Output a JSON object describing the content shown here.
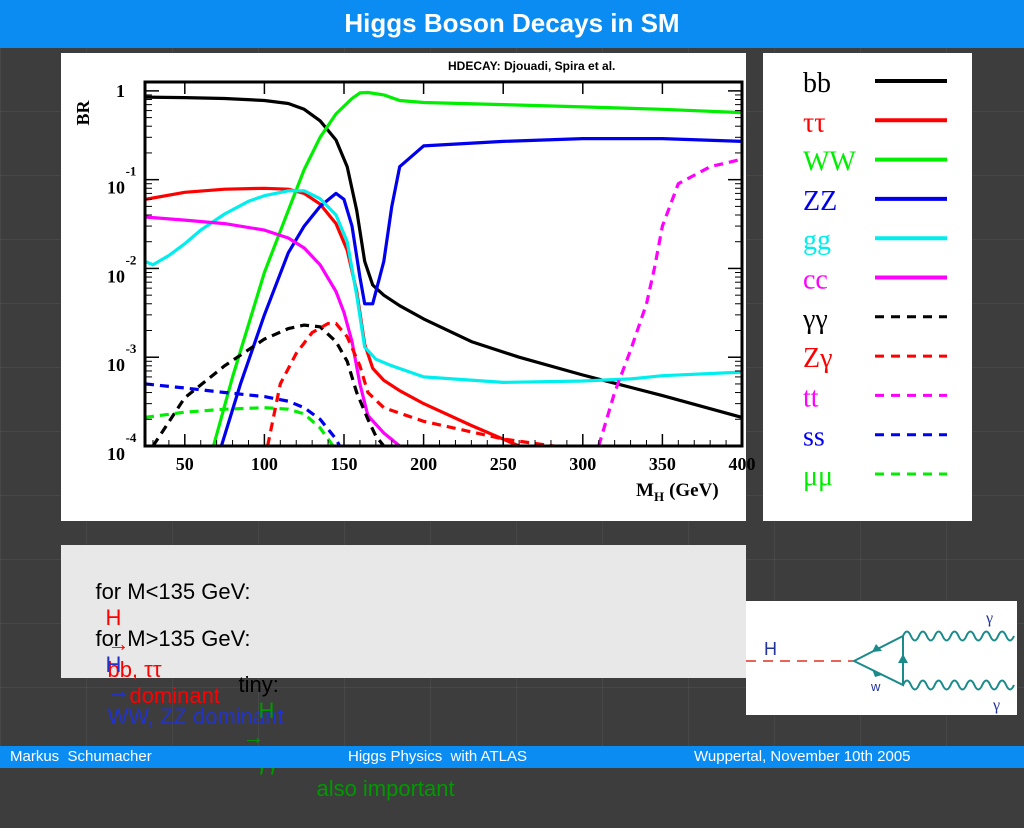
{
  "slide": {
    "title": "Higgs Boson Decays in SM",
    "footer_left": "Markus  Schumacher",
    "footer_center": "Higgs Physics  with ATLAS",
    "footer_right": "Wuppertal, November 10th 2005"
  },
  "text_box": {
    "line1_prefix": "for M<135 GeV:",
    "line1_h": "H",
    "line1_arrow": "→",
    "line1_products": "bb, ττ",
    "line1_suffix": "dominant",
    "line2_prefix": "for M>135 GeV:",
    "line2_h": "H",
    "line2_arrow": "→",
    "line2_products": "WW, ZZ dominant",
    "line3_prefix": "tiny:",
    "line3_h": "H",
    "line3_arrow": "→",
    "line3_products": "γγ",
    "line3_suffix": "also important"
  },
  "feynman": {
    "h_label": "H",
    "w_label": "w",
    "gamma_top": "γ",
    "gamma_bottom": "γ"
  },
  "chart_data": {
    "type": "line",
    "source_note": "HDECAY:  Djouadi, Spira et al.",
    "xlabel": "M",
    "xlabel_sub": "H",
    "xlabel_unit": "(GeV)",
    "ylabel": "BR",
    "xlim": [
      25,
      400
    ],
    "ylim_log10": [
      -4,
      0.1
    ],
    "y_scale": "log",
    "x_ticks": [
      50,
      100,
      150,
      200,
      250,
      300,
      350,
      400
    ],
    "y_ticks": [
      {
        "base": "1",
        "exp": ""
      },
      {
        "base": "10",
        "exp": "-1"
      },
      {
        "base": "10",
        "exp": "-2"
      },
      {
        "base": "10",
        "exp": "-3"
      },
      {
        "base": "10",
        "exp": "-4"
      }
    ],
    "y_tick_values": [
      0,
      -1,
      -2,
      -3,
      -4
    ],
    "legend_position": "right (separate panel)",
    "series": [
      {
        "name": "bb",
        "color": "#000000",
        "dash": false,
        "x": [
          25,
          50,
          75,
          100,
          115,
          125,
          135,
          145,
          152,
          158,
          163,
          168,
          175,
          185,
          200,
          230,
          260,
          300,
          350,
          400
        ],
        "y": [
          0.85,
          0.84,
          0.82,
          0.78,
          0.72,
          0.62,
          0.46,
          0.28,
          0.14,
          0.045,
          0.012,
          0.0065,
          0.005,
          0.0038,
          0.0027,
          0.0015,
          0.001,
          0.00063,
          0.00037,
          0.00021
        ]
      },
      {
        "name": "ττ",
        "color": "#ff0000",
        "dash": false,
        "x": [
          25,
          50,
          75,
          100,
          115,
          125,
          135,
          145,
          152,
          158,
          163,
          168,
          175,
          185,
          200,
          230,
          260
        ],
        "y": [
          0.06,
          0.072,
          0.078,
          0.08,
          0.078,
          0.07,
          0.053,
          0.032,
          0.016,
          0.0055,
          0.0014,
          0.00075,
          0.00055,
          0.00042,
          0.0003,
          0.00017,
          0.0001
        ]
      },
      {
        "name": "WW",
        "color": "#00ee00",
        "dash": false,
        "x": [
          68,
          80,
          100,
          115,
          125,
          135,
          145,
          155,
          160,
          165,
          175,
          185,
          200,
          250,
          300,
          350,
          400
        ],
        "y": [
          0.0001,
          0.0006,
          0.009,
          0.045,
          0.13,
          0.3,
          0.55,
          0.82,
          0.95,
          0.96,
          0.9,
          0.78,
          0.74,
          0.7,
          0.66,
          0.62,
          0.57
        ]
      },
      {
        "name": "ZZ",
        "color": "#0000ee",
        "dash": false,
        "x": [
          73,
          85,
          100,
          115,
          125,
          135,
          145,
          150,
          155,
          160,
          163,
          168,
          175,
          180,
          185,
          200,
          250,
          300,
          350,
          400
        ],
        "y": [
          0.0001,
          0.0005,
          0.003,
          0.015,
          0.03,
          0.05,
          0.07,
          0.06,
          0.03,
          0.008,
          0.004,
          0.004,
          0.012,
          0.05,
          0.14,
          0.24,
          0.27,
          0.29,
          0.29,
          0.27
        ]
      },
      {
        "name": "gg",
        "color": "#00eeee",
        "dash": false,
        "x": [
          25,
          30,
          40,
          50,
          60,
          75,
          90,
          100,
          115,
          125,
          135,
          145,
          152,
          158,
          163,
          170,
          180,
          200,
          250,
          300,
          330,
          350,
          400
        ],
        "y": [
          0.012,
          0.011,
          0.014,
          0.019,
          0.027,
          0.041,
          0.057,
          0.066,
          0.075,
          0.075,
          0.061,
          0.04,
          0.02,
          0.005,
          0.0013,
          0.00095,
          0.0008,
          0.0006,
          0.00052,
          0.00054,
          0.00057,
          0.00062,
          0.00068
        ]
      },
      {
        "name": "cc",
        "color": "#ff00ff",
        "dash": false,
        "x": [
          25,
          50,
          75,
          100,
          115,
          125,
          135,
          145,
          150,
          155,
          160,
          165,
          175,
          185
        ],
        "y": [
          0.038,
          0.035,
          0.032,
          0.027,
          0.022,
          0.017,
          0.011,
          0.0055,
          0.0032,
          0.0015,
          0.0005,
          0.00022,
          0.00014,
          0.0001
        ]
      },
      {
        "name": "γγ",
        "color": "#000000",
        "dash": true,
        "x": [
          30,
          50,
          75,
          100,
          115,
          125,
          135,
          145,
          152,
          158,
          165,
          170,
          175
        ],
        "y": [
          0.0001,
          0.00035,
          0.0008,
          0.0016,
          0.0021,
          0.0023,
          0.0022,
          0.0015,
          0.0009,
          0.0004,
          0.0002,
          0.00013,
          0.0001
        ]
      },
      {
        "name": "Zγ",
        "color": "#ff0000",
        "dash": true,
        "x": [
          102,
          110,
          120,
          130,
          140,
          145,
          152,
          160,
          165,
          175,
          200,
          250,
          300,
          340
        ],
        "y": [
          0.0001,
          0.0005,
          0.0011,
          0.0019,
          0.0024,
          0.0024,
          0.0017,
          0.0008,
          0.0004,
          0.00027,
          0.00019,
          0.00012,
          9e-05,
          7e-05
        ]
      },
      {
        "name": "tt",
        "color": "#ff00ff",
        "dash": true,
        "x": [
          310,
          320,
          330,
          340,
          345,
          350,
          360,
          380,
          400
        ],
        "y": [
          0.0001,
          0.0004,
          0.0012,
          0.004,
          0.01,
          0.03,
          0.09,
          0.14,
          0.17
        ]
      },
      {
        "name": "ss",
        "color": "#0000ee",
        "dash": true,
        "x": [
          25,
          50,
          75,
          100,
          115,
          125,
          135,
          145,
          150
        ],
        "y": [
          0.0005,
          0.00045,
          0.0004,
          0.00036,
          0.00032,
          0.00027,
          0.0002,
          0.00012,
          8e-05
        ]
      },
      {
        "name": "μμ",
        "color": "#00ee00",
        "dash": true,
        "x": [
          25,
          50,
          75,
          100,
          115,
          125,
          135,
          140,
          145
        ],
        "y": [
          0.00021,
          0.00024,
          0.00026,
          0.00027,
          0.00026,
          0.00023,
          0.00016,
          0.00012,
          9e-05
        ]
      }
    ]
  }
}
